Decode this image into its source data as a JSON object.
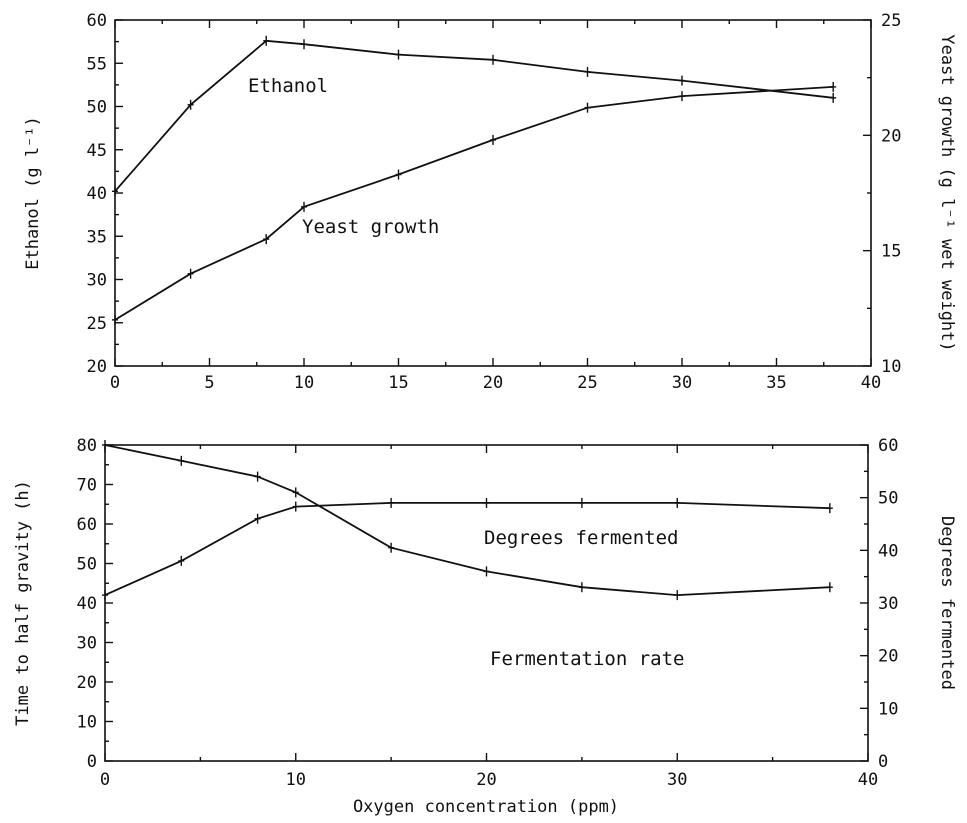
{
  "chart_data": [
    {
      "type": "line",
      "title": "",
      "xlabel": "",
      "ylabel": "Ethanol (g l⁻¹)",
      "y2label": "Yeast growth (g l⁻¹ wet weight)",
      "xlim": [
        0,
        40
      ],
      "ylim": [
        20,
        60
      ],
      "y2lim": [
        10,
        25
      ],
      "xticks": [
        "0",
        "5",
        "10",
        "15",
        "20",
        "25",
        "30",
        "35",
        "40"
      ],
      "yticks": [
        "20",
        "25",
        "30",
        "35",
        "40",
        "45",
        "50",
        "55",
        "60"
      ],
      "y2ticks": [
        "10",
        "15",
        "20",
        "25"
      ],
      "grid": false,
      "series": [
        {
          "name": "Ethanol",
          "axis": "left",
          "x": [
            0,
            4,
            8,
            10,
            15,
            20,
            25,
            30,
            38
          ],
          "values": [
            40.2,
            50.2,
            57.6,
            57.2,
            56.0,
            55.4,
            54.0,
            53.0,
            51.0
          ]
        },
        {
          "name": "Yeast growth",
          "axis": "right",
          "x": [
            0,
            4,
            8,
            10,
            15,
            20,
            25,
            30,
            38
          ],
          "values": [
            12.0,
            14.0,
            15.5,
            16.9,
            18.3,
            19.8,
            21.2,
            21.7,
            22.1
          ]
        }
      ]
    },
    {
      "type": "line",
      "title": "",
      "xlabel": "Oxygen concentration (ppm)",
      "ylabel": "Time to half gravity (h)",
      "y2label": "Degrees fermented",
      "xlim": [
        0,
        40
      ],
      "ylim": [
        0,
        80
      ],
      "y2lim": [
        0,
        60
      ],
      "xticks": [
        "0",
        "10",
        "20",
        "30",
        "40"
      ],
      "yticks": [
        "0",
        "10",
        "20",
        "30",
        "40",
        "50",
        "60",
        "70",
        "80"
      ],
      "y2ticks": [
        "0",
        "10",
        "20",
        "30",
        "40",
        "50",
        "60"
      ],
      "grid": false,
      "series": [
        {
          "name": "Fermentation rate",
          "axis": "left",
          "x": [
            0,
            4,
            8,
            10,
            15,
            20,
            25,
            30,
            38
          ],
          "values": [
            80,
            76,
            72,
            68,
            54,
            48,
            44,
            42,
            44
          ]
        },
        {
          "name": "Degrees fermented",
          "axis": "right",
          "x": [
            0,
            4,
            8,
            10,
            15,
            20,
            25,
            30,
            38
          ],
          "values": [
            31.5,
            38.0,
            46.0,
            48.3,
            49.0,
            49.0,
            49.0,
            49.0,
            48.0
          ]
        }
      ]
    }
  ]
}
